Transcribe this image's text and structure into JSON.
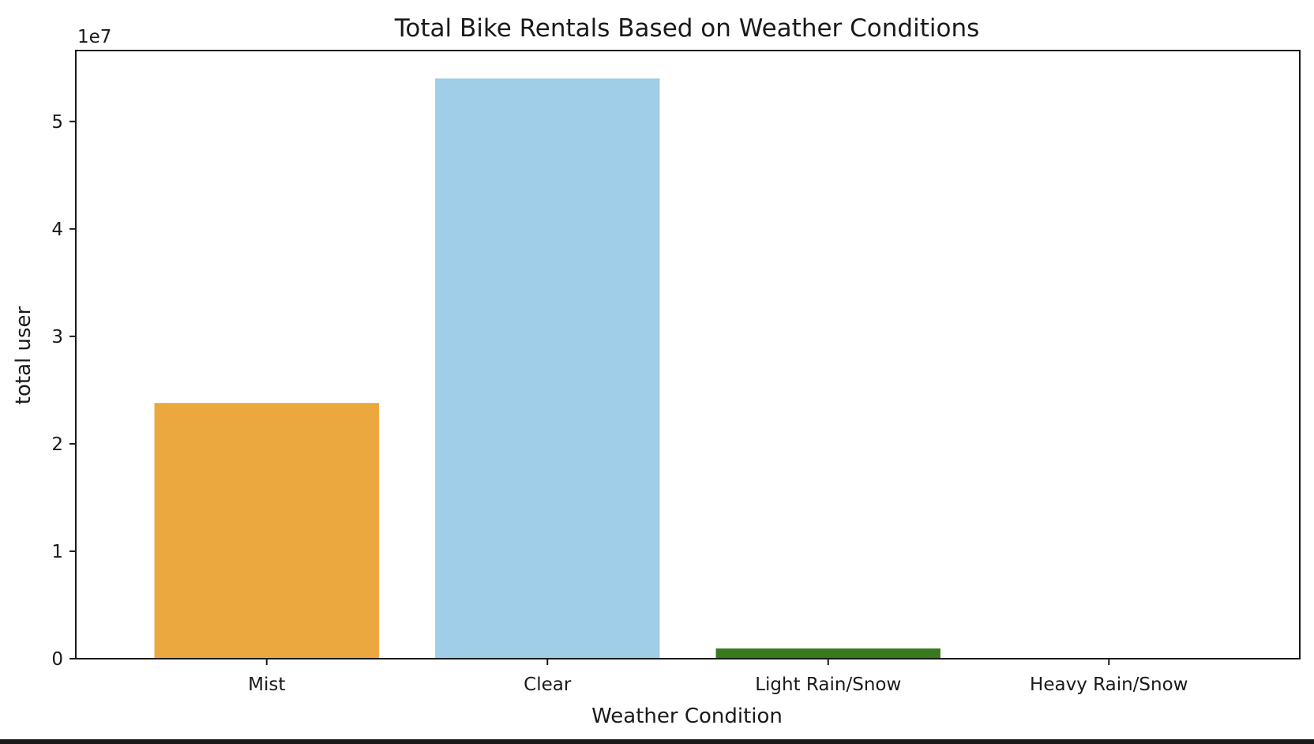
{
  "chart_data": {
    "type": "bar",
    "title": "Total Bike Rentals Based on Weather Conditions",
    "xlabel": "Weather Condition",
    "ylabel": "total user",
    "y_offset_label": "1e7",
    "categories": [
      "Mist",
      "Clear",
      "Light Rain/Snow",
      "Heavy Rain/Snow"
    ],
    "values": [
      23800000,
      54000000,
      950000,
      0
    ],
    "bar_colors": [
      "#EBA83E",
      "#A0CDE7",
      "#3A7A1E",
      "#D9D9D9"
    ],
    "ylim": [
      0,
      56600000
    ],
    "yticks": [
      {
        "value": 0,
        "label": "0"
      },
      {
        "value": 10000000,
        "label": "1"
      },
      {
        "value": 20000000,
        "label": "2"
      },
      {
        "value": 30000000,
        "label": "3"
      },
      {
        "value": 40000000,
        "label": "4"
      },
      {
        "value": 50000000,
        "label": "5"
      }
    ],
    "grid": false,
    "legend": "none"
  }
}
